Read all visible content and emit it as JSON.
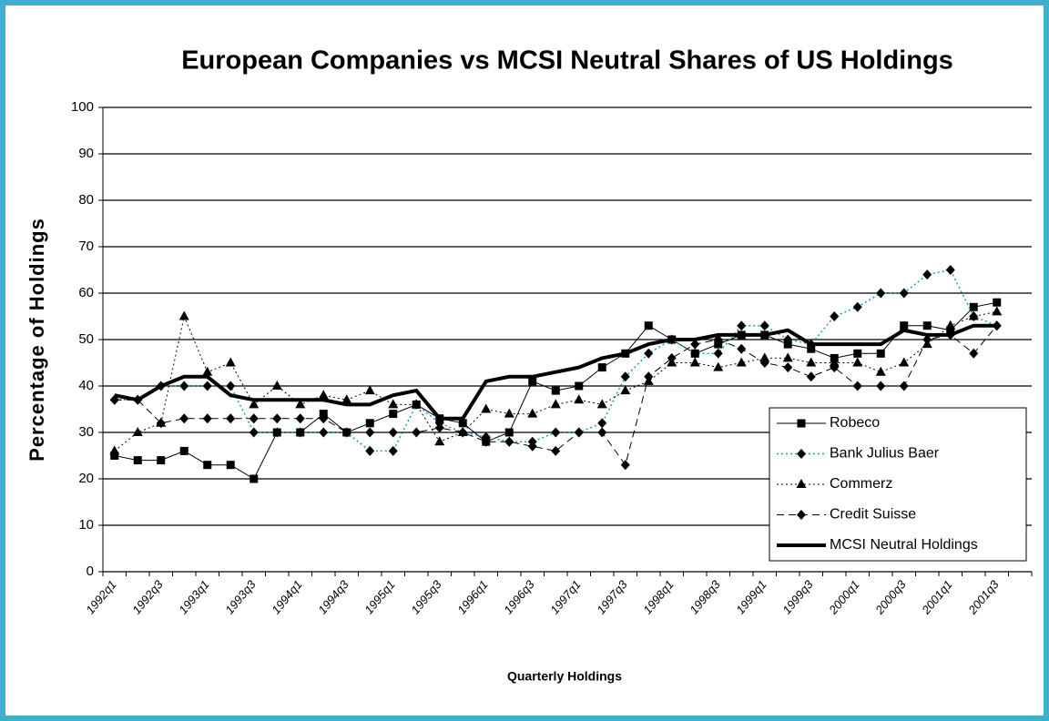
{
  "chart_data": {
    "type": "line",
    "title": "European Companies vs MCSI Neutral Shares of US Holdings",
    "x_label": "Quarterly Holdings",
    "y_label": "Percentage of Holdings",
    "categories": [
      "1992q1",
      null,
      "1992q3",
      null,
      "1993q1",
      null,
      "1993q3",
      null,
      "1994q1",
      null,
      "1994q3",
      null,
      "1995q1",
      null,
      "1995q3",
      null,
      "1996q1",
      null,
      "1996q3",
      null,
      "1997q1",
      null,
      "1997q3",
      null,
      "1998q1",
      null,
      "1998q3",
      null,
      "1999q1",
      null,
      "1999q3",
      null,
      "2000q1",
      null,
      "2000q3",
      null,
      "2001q1",
      null,
      "2001q3",
      null
    ],
    "series": [
      {
        "name": "Robeco",
        "color": "#000000",
        "marker": "square",
        "dash": "solid",
        "width": 1,
        "values": [
          25,
          24,
          24,
          26,
          23,
          23,
          20,
          30,
          30,
          34,
          30,
          32,
          34,
          36,
          33,
          32,
          28,
          30,
          41,
          39,
          40,
          44,
          47,
          53,
          50,
          47,
          49,
          51,
          51,
          49,
          48,
          46,
          47,
          47,
          53,
          53,
          52,
          57,
          58,
          null
        ]
      },
      {
        "name": "Bank Julius Baer",
        "color": "#1a9bbf",
        "marker": "diamond",
        "dash": "dotted",
        "width": 1.5,
        "values": [
          37,
          37,
          40,
          40,
          40,
          40,
          30,
          30,
          30,
          30,
          30,
          26,
          26,
          36,
          32,
          30,
          29,
          28,
          28,
          30,
          30,
          32,
          42,
          47,
          50,
          47,
          47,
          53,
          53,
          50,
          49,
          55,
          57,
          60,
          60,
          64,
          65,
          55,
          53,
          null
        ]
      },
      {
        "name": "Commerz",
        "color": "#000000",
        "marker": "triangle",
        "dash": "dotted",
        "width": 1,
        "values": [
          26,
          30,
          32,
          55,
          43,
          45,
          36,
          40,
          36,
          38,
          37,
          39,
          36,
          36,
          28,
          30,
          35,
          34,
          34,
          36,
          37,
          36,
          39,
          41,
          45,
          45,
          44,
          45,
          46,
          46,
          45,
          45,
          45,
          43,
          45,
          49,
          53,
          55,
          56,
          null
        ]
      },
      {
        "name": "Credit Suisse",
        "color": "#000000",
        "marker": "diamond",
        "dash": "dashed",
        "width": 1,
        "values": [
          37,
          37,
          32,
          33,
          33,
          33,
          33,
          33,
          33,
          33,
          30,
          30,
          30,
          30,
          31,
          30,
          28,
          28,
          27,
          26,
          30,
          30,
          23,
          42,
          46,
          49,
          50,
          48,
          45,
          44,
          42,
          44,
          40,
          40,
          40,
          50,
          51,
          47,
          53,
          null
        ]
      },
      {
        "name": "MCSI Neutral Holdings",
        "color": "#000000",
        "marker": "none",
        "dash": "solid",
        "width": 4,
        "values": [
          38,
          37,
          40,
          42,
          42,
          38,
          37,
          37,
          37,
          37,
          36,
          36,
          38,
          39,
          33,
          33,
          41,
          42,
          42,
          43,
          44,
          46,
          47,
          49,
          50,
          50,
          51,
          51,
          51,
          52,
          49,
          49,
          49,
          49,
          52,
          51,
          51,
          53,
          53,
          null
        ]
      }
    ],
    "ylim": [
      0,
      100
    ],
    "yticks": [
      0,
      10,
      20,
      30,
      40,
      50,
      60,
      70,
      80,
      90,
      100
    ],
    "grid": true,
    "legend": "lower right"
  }
}
